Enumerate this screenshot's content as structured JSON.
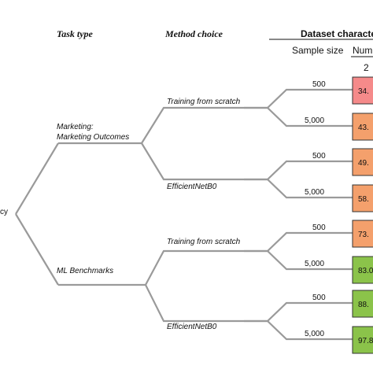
{
  "headers": {
    "task_type": "Task type",
    "method_choice": "Method choice",
    "dataset": "Dataset characte",
    "sample_size": "Sample size",
    "num": "Num",
    "num_sub": "2"
  },
  "root_label": "cy",
  "tasks": [
    {
      "label_line1": "Marketing:",
      "label_line2": "Marketing Outcomes",
      "methods": [
        {
          "label": "Training from scratch",
          "leaves": [
            {
              "size": "500",
              "value": "34.",
              "color": "#f58a8a"
            },
            {
              "size": "5,000",
              "value": "43.",
              "color": "#f4a06c"
            }
          ]
        },
        {
          "label": "EfficientNetB0",
          "leaves": [
            {
              "size": "500",
              "value": "49.",
              "color": "#f4a06c"
            },
            {
              "size": "5,000",
              "value": "58.",
              "color": "#f4a06c"
            }
          ]
        }
      ]
    },
    {
      "label_line1": "ML Benchmarks",
      "label_line2": "",
      "methods": [
        {
          "label": "Training from scratch",
          "leaves": [
            {
              "size": "500",
              "value": "73.",
              "color": "#f4a06c"
            },
            {
              "size": "5,000",
              "value": "83.0",
              "color": "#8bc34a"
            }
          ]
        },
        {
          "label": "EfficientNetB0",
          "leaves": [
            {
              "size": "500",
              "value": "88.",
              "color": "#8bc34a"
            },
            {
              "size": "5,000",
              "value": "97.8",
              "color": "#8bc34a"
            }
          ]
        }
      ]
    }
  ]
}
